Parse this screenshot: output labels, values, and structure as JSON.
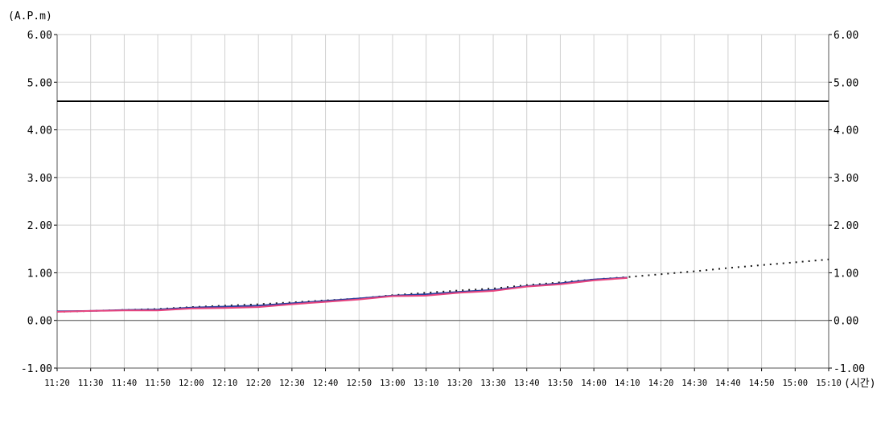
{
  "chart_data": {
    "type": "line",
    "y_unit_label": "(A.P.m)",
    "x_unit_label": "(시간)",
    "ylim": [
      -1.0,
      6.0
    ],
    "y_ticks": [
      "-1.00",
      "0.00",
      "1.00",
      "2.00",
      "3.00",
      "4.00",
      "5.00",
      "6.00"
    ],
    "y_tick_values": [
      -1,
      0,
      1,
      2,
      3,
      4,
      5,
      6
    ],
    "x_ticks": [
      "11:20",
      "11:30",
      "11:40",
      "11:50",
      "12:00",
      "12:10",
      "12:20",
      "12:30",
      "12:40",
      "12:50",
      "13:00",
      "13:10",
      "13:20",
      "13:30",
      "13:40",
      "13:50",
      "14:00",
      "14:10",
      "14:20",
      "14:30",
      "14:40",
      "14:50",
      "15:00",
      "15:10"
    ],
    "grid": true,
    "threshold": {
      "value": 4.6,
      "color": "#000000"
    },
    "zero_line": {
      "value": 0,
      "color": "#555555"
    },
    "series": [
      {
        "style": "dotted",
        "color": "#1a1a1a",
        "values": [
          0.18,
          0.2,
          0.22,
          0.24,
          0.28,
          0.31,
          0.34,
          0.38,
          0.42,
          0.46,
          0.53,
          0.58,
          0.63,
          0.67,
          0.74,
          0.8,
          0.86,
          0.91,
          0.97,
          1.03,
          1.1,
          1.16,
          1.22,
          1.28
        ]
      },
      {
        "style": "solid",
        "color": "#2b3f9e",
        "values": [
          0.19,
          0.2,
          0.22,
          0.23,
          0.27,
          0.29,
          0.31,
          0.36,
          0.41,
          0.46,
          0.52,
          0.55,
          0.6,
          0.64,
          0.72,
          0.78,
          0.86,
          0.9
        ]
      },
      {
        "style": "solid",
        "color": "#e8457f",
        "values": [
          0.18,
          0.2,
          0.21,
          0.21,
          0.25,
          0.26,
          0.28,
          0.34,
          0.39,
          0.44,
          0.51,
          0.52,
          0.58,
          0.62,
          0.71,
          0.76,
          0.84,
          0.89
        ]
      }
    ]
  }
}
